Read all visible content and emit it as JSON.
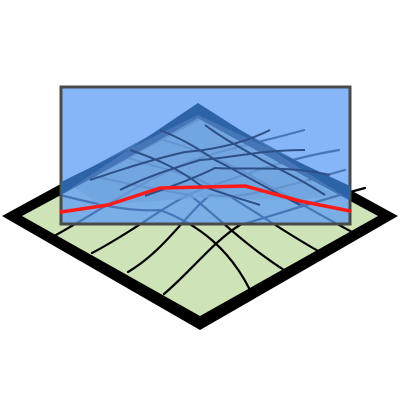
{
  "diagram": {
    "kind": "mesh-surface-with-cutting-plane",
    "grid_divisions": 5,
    "colors": {
      "background": "#ffffff",
      "base_fill": "#cfe3b8",
      "base_border": "#000000",
      "mesh_lines": "#000000",
      "plane_fill": "#5d9cf5",
      "plane_stroke": "#4a4a4a",
      "projected_mesh_fill": "#6fa3dd",
      "projected_mesh_border": "#2d64a8",
      "intersection_curve": "#ff1a1a"
    }
  }
}
